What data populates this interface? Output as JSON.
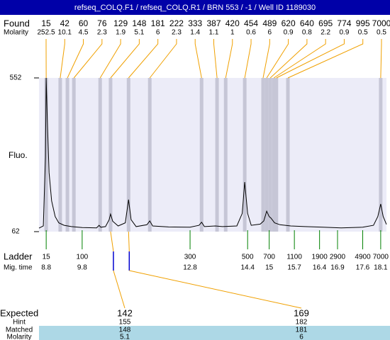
{
  "title": "refseq_COLQ.F1 / refseq_COLQ.R1 / BRN 553 / -1 / Well ID 1189030",
  "chart_data": {
    "type": "line",
    "y_label": "Fluo.",
    "ylim": [
      62,
      552
    ],
    "yticks": [
      62,
      552
    ],
    "xlim": [
      8.6,
      18.26
    ],
    "color": "#000000",
    "trace": {
      "x": [
        8.6,
        8.72,
        8.78,
        8.8,
        8.83,
        8.88,
        8.95,
        9.05,
        9.15,
        9.3,
        9.5,
        9.8,
        10.2,
        10.27,
        10.32,
        10.45,
        10.55,
        10.59,
        10.65,
        10.8,
        11.0,
        11.09,
        11.16,
        11.3,
        11.6,
        11.68,
        11.76,
        12.2,
        12.8,
        13.05,
        13.12,
        13.2,
        13.5,
        13.7,
        14.1,
        14.25,
        14.32,
        14.4,
        14.5,
        14.75,
        14.85,
        14.93,
        15.0,
        15.05,
        15.15,
        15.3,
        15.6,
        16.0,
        16.5,
        17.0,
        17.6,
        17.9,
        18.02,
        18.1,
        18.17,
        18.26
      ],
      "values": [
        73,
        80,
        300,
        552,
        420,
        250,
        160,
        110,
        90,
        82,
        78,
        75,
        74,
        82,
        76,
        78,
        100,
        118,
        95,
        80,
        90,
        164,
        100,
        78,
        84,
        96,
        80,
        77,
        76,
        82,
        92,
        78,
        80,
        78,
        80,
        120,
        220,
        120,
        82,
        86,
        96,
        127,
        110,
        105,
        90,
        84,
        80,
        78,
        76,
        74,
        76,
        82,
        110,
        150,
        110,
        85
      ]
    },
    "found": {
      "label": "Found",
      "molarity_label": "Molarity",
      "sizes": [
        15,
        42,
        60,
        76,
        129,
        148,
        181,
        222,
        333,
        387,
        420,
        454,
        489,
        620,
        640,
        695,
        774,
        995,
        7000
      ],
      "molarity": [
        252.5,
        10.1,
        4.5,
        2.3,
        1.9,
        5.1,
        6,
        2.3,
        1.4,
        1.1,
        1,
        0.6,
        6,
        0.9,
        0.8,
        2.2,
        0.9,
        0.5,
        0.5
      ],
      "times": [
        8.8,
        9.19,
        9.39,
        9.57,
        10.3,
        10.59,
        11.09,
        11.68,
        13.12,
        13.55,
        13.79,
        14.32,
        14.83,
        14.93,
        15.03,
        15.13,
        15.2,
        15.52,
        18.1
      ]
    },
    "ladder": {
      "label": "Ladder",
      "time_label": "Mig. time",
      "sizes": [
        15,
        100,
        300,
        500,
        700,
        1100,
        1900,
        2900,
        4900,
        7000
      ],
      "times": [
        8.8,
        9.8,
        12.8,
        14.4,
        15,
        15.7,
        16.4,
        16.9,
        17.6,
        18.1
      ]
    }
  },
  "expected": {
    "labels": [
      "Expected",
      "Hint",
      "Matched",
      "Molarity"
    ],
    "columns": [
      {
        "expected": 142,
        "hint": 155,
        "matched": 148,
        "molarity": 5.1
      },
      {
        "expected": 169,
        "hint": 182,
        "matched": 181,
        "molarity": 6
      }
    ]
  }
}
